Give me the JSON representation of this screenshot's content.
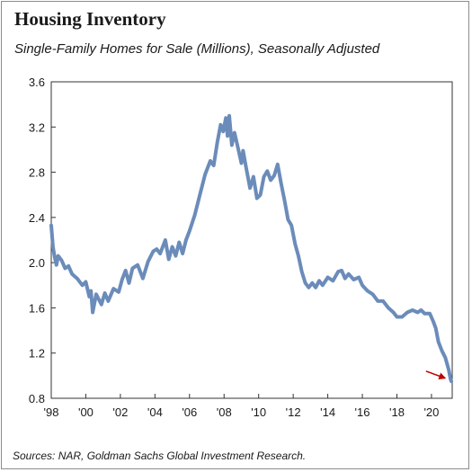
{
  "chart_data": {
    "type": "line",
    "title": "Housing Inventory",
    "subtitle": "Single-Family Homes for Sale (Millions), Seasonally Adjusted",
    "source": "Sources: NAR, Goldman Sachs Global Investment Research.",
    "xlabel": "",
    "ylabel": "",
    "ylim": [
      0.8,
      3.6
    ],
    "xlim": [
      1998.0,
      2021.2
    ],
    "yticks": [
      0.8,
      1.2,
      1.6,
      2.0,
      2.4,
      2.8,
      3.2,
      3.6
    ],
    "yticklabels": [
      "0.8",
      "1.2",
      "1.6",
      "2.0",
      "2.4",
      "2.8",
      "3.2",
      "3.6"
    ],
    "xticks": [
      1998,
      2000,
      2002,
      2004,
      2006,
      2008,
      2010,
      2012,
      2014,
      2016,
      2018,
      2020
    ],
    "xticklabels": [
      "'98",
      "'00",
      "'02",
      "'04",
      "'06",
      "'08",
      "'10",
      "'12",
      "'14",
      "'16",
      "'18",
      "'20"
    ],
    "grid": false,
    "line_color": "#6b8cba",
    "arrow_color": "#c00000",
    "series": [
      {
        "values": [
          [
            1998.0,
            2.33
          ],
          [
            1998.1,
            2.14
          ],
          [
            1998.2,
            2.05
          ],
          [
            1998.3,
            1.98
          ],
          [
            1998.4,
            2.06
          ],
          [
            1998.6,
            2.02
          ],
          [
            1998.8,
            1.95
          ],
          [
            1999.0,
            1.97
          ],
          [
            1999.2,
            1.9
          ],
          [
            1999.5,
            1.86
          ],
          [
            1999.8,
            1.8
          ],
          [
            2000.0,
            1.83
          ],
          [
            2000.2,
            1.7
          ],
          [
            2000.3,
            1.75
          ],
          [
            2000.4,
            1.56
          ],
          [
            2000.6,
            1.72
          ],
          [
            2000.9,
            1.63
          ],
          [
            2001.1,
            1.73
          ],
          [
            2001.3,
            1.66
          ],
          [
            2001.6,
            1.77
          ],
          [
            2001.9,
            1.74
          ],
          [
            2002.1,
            1.85
          ],
          [
            2002.3,
            1.93
          ],
          [
            2002.5,
            1.82
          ],
          [
            2002.7,
            1.95
          ],
          [
            2003.0,
            1.98
          ],
          [
            2003.3,
            1.86
          ],
          [
            2003.6,
            2.01
          ],
          [
            2003.9,
            2.1
          ],
          [
            2004.1,
            2.12
          ],
          [
            2004.3,
            2.08
          ],
          [
            2004.6,
            2.2
          ],
          [
            2004.8,
            2.03
          ],
          [
            2005.0,
            2.14
          ],
          [
            2005.2,
            2.06
          ],
          [
            2005.4,
            2.18
          ],
          [
            2005.6,
            2.08
          ],
          [
            2005.8,
            2.2
          ],
          [
            2006.0,
            2.28
          ],
          [
            2006.3,
            2.42
          ],
          [
            2006.6,
            2.6
          ],
          [
            2006.9,
            2.78
          ],
          [
            2007.2,
            2.9
          ],
          [
            2007.4,
            2.86
          ],
          [
            2007.6,
            3.06
          ],
          [
            2007.8,
            3.22
          ],
          [
            2007.95,
            3.16
          ],
          [
            2008.1,
            3.28
          ],
          [
            2008.2,
            3.12
          ],
          [
            2008.3,
            3.3
          ],
          [
            2008.45,
            3.04
          ],
          [
            2008.6,
            3.15
          ],
          [
            2008.8,
            3.02
          ],
          [
            2009.0,
            2.88
          ],
          [
            2009.1,
            2.99
          ],
          [
            2009.25,
            2.86
          ],
          [
            2009.5,
            2.66
          ],
          [
            2009.7,
            2.76
          ],
          [
            2009.9,
            2.57
          ],
          [
            2010.1,
            2.6
          ],
          [
            2010.3,
            2.76
          ],
          [
            2010.5,
            2.81
          ],
          [
            2010.7,
            2.73
          ],
          [
            2010.9,
            2.77
          ],
          [
            2011.1,
            2.87
          ],
          [
            2011.3,
            2.7
          ],
          [
            2011.5,
            2.55
          ],
          [
            2011.7,
            2.38
          ],
          [
            2011.9,
            2.33
          ],
          [
            2012.1,
            2.17
          ],
          [
            2012.3,
            2.06
          ],
          [
            2012.5,
            1.92
          ],
          [
            2012.7,
            1.82
          ],
          [
            2012.9,
            1.78
          ],
          [
            2013.1,
            1.82
          ],
          [
            2013.3,
            1.78
          ],
          [
            2013.5,
            1.84
          ],
          [
            2013.7,
            1.8
          ],
          [
            2014.0,
            1.87
          ],
          [
            2014.3,
            1.84
          ],
          [
            2014.6,
            1.92
          ],
          [
            2014.8,
            1.93
          ],
          [
            2015.0,
            1.86
          ],
          [
            2015.2,
            1.9
          ],
          [
            2015.5,
            1.85
          ],
          [
            2015.8,
            1.87
          ],
          [
            2016.0,
            1.8
          ],
          [
            2016.3,
            1.75
          ],
          [
            2016.6,
            1.72
          ],
          [
            2016.9,
            1.66
          ],
          [
            2017.2,
            1.66
          ],
          [
            2017.5,
            1.6
          ],
          [
            2017.8,
            1.56
          ],
          [
            2018.0,
            1.52
          ],
          [
            2018.3,
            1.52
          ],
          [
            2018.6,
            1.56
          ],
          [
            2018.9,
            1.58
          ],
          [
            2019.2,
            1.56
          ],
          [
            2019.4,
            1.58
          ],
          [
            2019.6,
            1.55
          ],
          [
            2019.9,
            1.55
          ],
          [
            2020.1,
            1.48
          ],
          [
            2020.25,
            1.42
          ],
          [
            2020.4,
            1.3
          ],
          [
            2020.6,
            1.22
          ],
          [
            2020.8,
            1.16
          ],
          [
            2021.0,
            1.05
          ],
          [
            2021.1,
            0.97
          ],
          [
            2021.15,
            0.95
          ]
        ]
      }
    ],
    "annotations": [
      {
        "type": "arrow",
        "from": [
          2019.68,
          1.04
        ],
        "to": [
          2020.75,
          0.98
        ]
      }
    ]
  }
}
